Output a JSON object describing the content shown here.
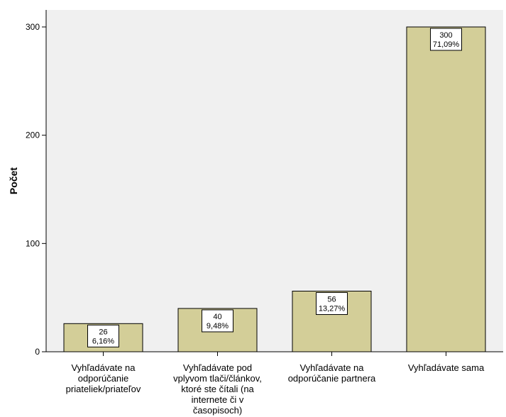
{
  "chart_data": {
    "type": "bar",
    "xlabel": "",
    "ylabel": "Počet",
    "ylim": [
      0,
      300
    ],
    "yticks": [
      0,
      100,
      200,
      300
    ],
    "categories": [
      [
        "Vyhľadávate na",
        "odporúčanie",
        "priateliek/priateľov"
      ],
      [
        "Vyhľadávate pod",
        "vplyvom tlači/článkov,",
        "ktoré ste čítali (na",
        "internete či v",
        "časopisoch)"
      ],
      [
        "Vyhľadávate na",
        "odporúčanie partnera"
      ],
      [
        "Vyhľadávate sama"
      ]
    ],
    "values": [
      26,
      40,
      56,
      300
    ],
    "percent_labels": [
      "6,16%",
      "9,48%",
      "13,27%",
      "71,09%"
    ],
    "grid": false,
    "legend": "none",
    "colors": {
      "bar_fill": "#d3ce98",
      "plot_background": "#f0f0f0",
      "stroke": "#000000"
    }
  }
}
